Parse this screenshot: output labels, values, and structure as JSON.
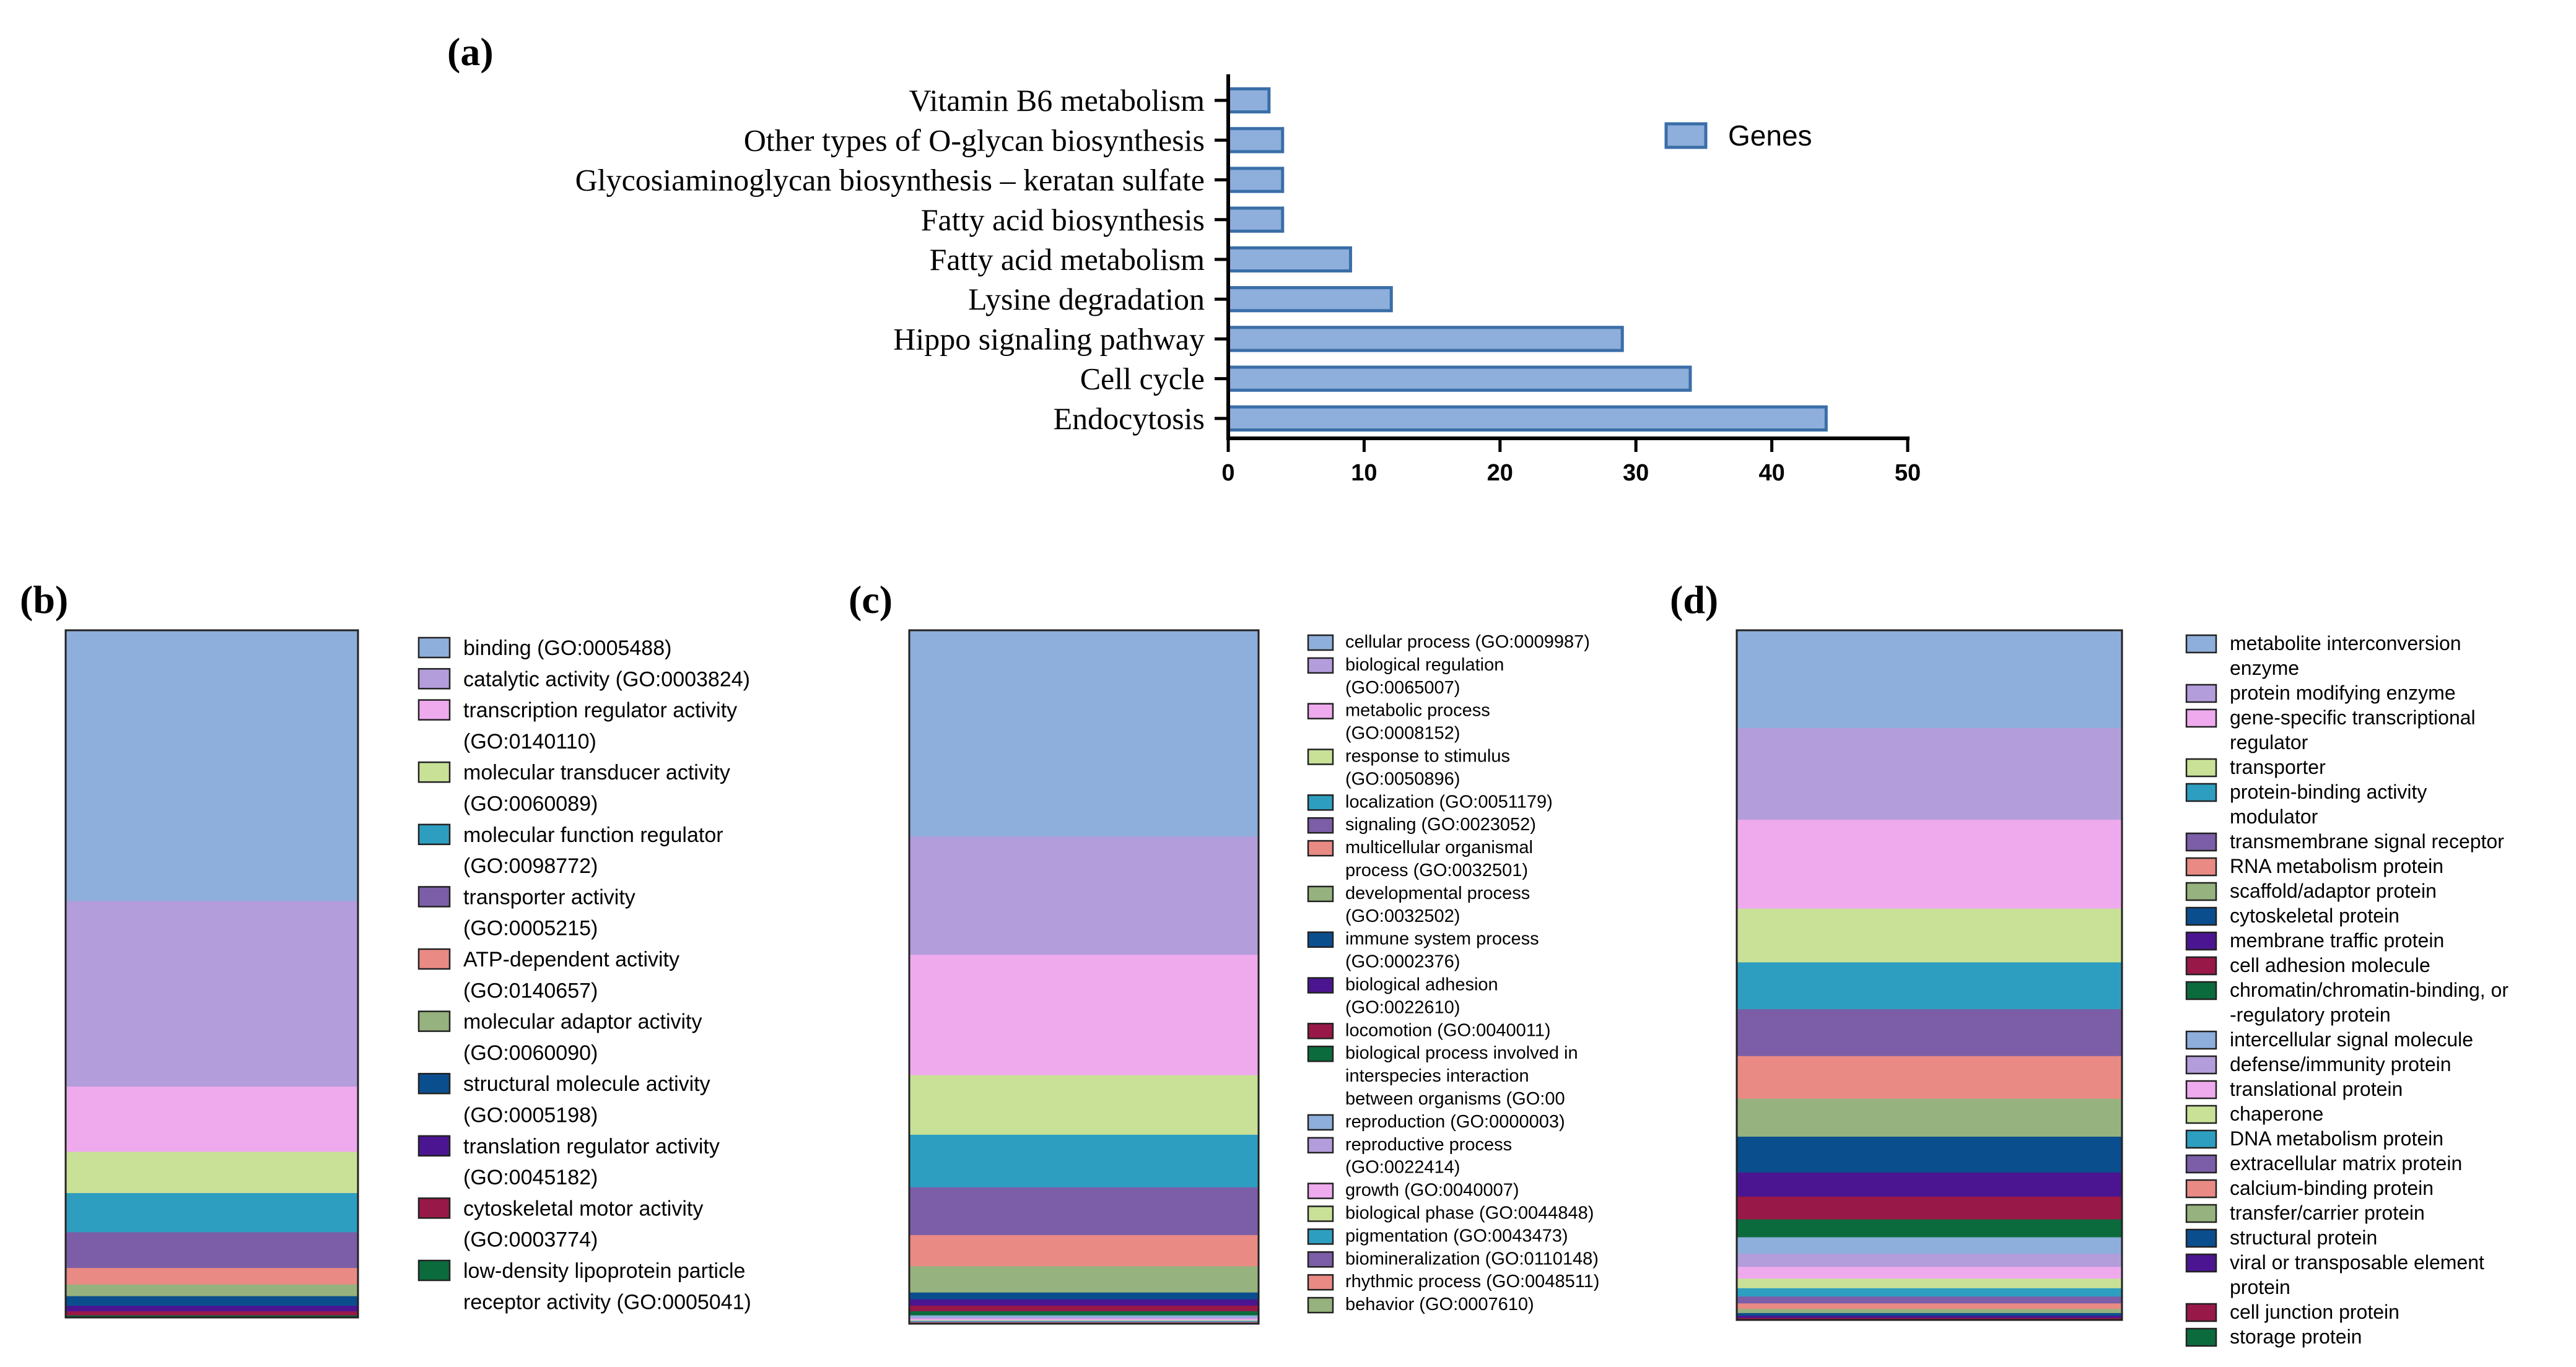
{
  "chart_data": [
    {
      "panel": "(a)",
      "type": "bar",
      "orientation": "horizontal",
      "categories": [
        "Vitamin B6 metabolism",
        "Other types of O-glycan biosynthesis",
        "Glycosiaminoglycan biosynthesis – keratan sulfate",
        "Fatty acid biosynthesis",
        "Fatty acid metabolism",
        "Lysine degradation",
        "Hippo signaling pathway",
        "Cell cycle",
        "Endocytosis"
      ],
      "series": [
        {
          "name": "Genes",
          "values": [
            3,
            4,
            4,
            4,
            9,
            12,
            29,
            34,
            44
          ]
        }
      ],
      "xlim": [
        0,
        50
      ],
      "xticks": [
        "0",
        "10",
        "20",
        "30",
        "40",
        "50"
      ],
      "legend": "top-right",
      "color": "#8eaedb",
      "edge_color": "#3a6ea8"
    },
    {
      "panel": "(b)",
      "type": "bar",
      "stacked": true,
      "series": [
        {
          "name": "binding (GO:0005488)",
          "value": 39.4,
          "color": "#8eaedb"
        },
        {
          "name": "catalytic activity (GO:0003824)",
          "value": 27.0,
          "color": "#b39ddb"
        },
        {
          "name": "transcription regulator activity (GO:0140110)",
          "value": 9.5,
          "color": "#efaaee"
        },
        {
          "name": "molecular transducer activity (GO:0060089)",
          "value": 6.0,
          "color": "#c8e197"
        },
        {
          "name": "molecular function regulator (GO:0098772)",
          "value": 5.7,
          "color": "#2e9ec0"
        },
        {
          "name": "transporter activity (GO:0005215)",
          "value": 5.2,
          "color": "#7b5ea7"
        },
        {
          "name": "ATP-dependent activity (GO:0140657)",
          "value": 2.4,
          "color": "#e98a84"
        },
        {
          "name": "molecular adaptor activity (GO:0060090)",
          "value": 1.7,
          "color": "#96b27e"
        },
        {
          "name": "structural molecule activity (GO:0005198)",
          "value": 1.4,
          "color": "#0b4e8e"
        },
        {
          "name": "translation regulator activity (GO:0045182)",
          "value": 0.8,
          "color": "#4b1591"
        },
        {
          "name": "cytoskeletal motor activity (GO:0003774)",
          "value": 0.6,
          "color": "#981848"
        },
        {
          "name": "low-density lipoprotein particle receptor activity (GO:0005041)",
          "value": 0.3,
          "color": "#0c6b3c"
        }
      ],
      "legend_lines": [
        [
          "binding (GO:0005488)"
        ],
        [
          "catalytic activity (GO:0003824)"
        ],
        [
          "transcription regulator activity",
          "(GO:0140110)"
        ],
        [
          "molecular transducer activity",
          "(GO:0060089)"
        ],
        [
          "molecular function regulator",
          "(GO:0098772)"
        ],
        [
          "transporter activity",
          "(GO:0005215)"
        ],
        [
          "ATP-dependent activity",
          "(GO:0140657)"
        ],
        [
          "molecular adaptor activity",
          "(GO:0060090)"
        ],
        [
          "structural molecule activity",
          "(GO:0005198)"
        ],
        [
          "translation regulator activity",
          "(GO:0045182)"
        ],
        [
          "cytoskeletal motor activity",
          "(GO:0003774)"
        ],
        [
          "low-density lipoprotein particle",
          "receptor activity (GO:0005041)"
        ]
      ],
      "legend": "right"
    },
    {
      "panel": "(c)",
      "type": "bar",
      "stacked": true,
      "series": [
        {
          "name": "cellular process (GO:0009987)",
          "value": 29.8,
          "color": "#8eaedb"
        },
        {
          "name": "biological regulation (GO:0065007)",
          "value": 17.1,
          "color": "#b39ddb"
        },
        {
          "name": "metabolic process (GO:0008152)",
          "value": 17.4,
          "color": "#efaaee"
        },
        {
          "name": "response to stimulus (GO:0050896)",
          "value": 8.6,
          "color": "#c8e197"
        },
        {
          "name": "localization (GO:0051179)",
          "value": 7.6,
          "color": "#2e9ec0"
        },
        {
          "name": "signaling (GO:0023052)",
          "value": 6.9,
          "color": "#7b5ea7"
        },
        {
          "name": "multicellular organismal process (GO:0032501)",
          "value": 4.5,
          "color": "#e98a84"
        },
        {
          "name": "developmental process (GO:0032502)",
          "value": 3.8,
          "color": "#96b27e"
        },
        {
          "name": "immune system process (GO:0002376)",
          "value": 1.0,
          "color": "#0b4e8e"
        },
        {
          "name": "biological adhesion (GO:0022610)",
          "value": 0.9,
          "color": "#4b1591"
        },
        {
          "name": "locomotion (GO:0040011)",
          "value": 0.8,
          "color": "#981848"
        },
        {
          "name": "biological process involved in interspecies interaction between organisms (GO:00",
          "value": 0.6,
          "color": "#0c6b3c"
        },
        {
          "name": "reproduction (GO:0000003)",
          "value": 0.3,
          "color": "#8eaedb"
        },
        {
          "name": "reproductive process (GO:0022414)",
          "value": 0.2,
          "color": "#b39ddb"
        },
        {
          "name": "growth (GO:0040007)",
          "value": 0.2,
          "color": "#efaaee"
        },
        {
          "name": "biological phase (GO:0044848)",
          "value": 0.1,
          "color": "#c8e197"
        },
        {
          "name": "pigmentation (GO:0043473)",
          "value": 0.1,
          "color": "#2e9ec0"
        },
        {
          "name": "biomineralization (GO:0110148)",
          "value": 0.1,
          "color": "#7b5ea7"
        },
        {
          "name": "rhythmic process (GO:0048511)",
          "value": 0.1,
          "color": "#e98a84"
        },
        {
          "name": "behavior (GO:0007610)",
          "value": 0.1,
          "color": "#96b27e"
        }
      ],
      "legend_lines": [
        [
          "cellular process (GO:0009987)"
        ],
        [
          "biological regulation",
          "(GO:0065007)"
        ],
        [
          "metabolic process",
          "(GO:0008152)"
        ],
        [
          "response to stimulus",
          "(GO:0050896)"
        ],
        [
          "localization (GO:0051179)"
        ],
        [
          "signaling (GO:0023052)"
        ],
        [
          "multicellular organismal",
          "process (GO:0032501)"
        ],
        [
          "developmental process",
          "(GO:0032502)"
        ],
        [
          "immune system process",
          "(GO:0002376)"
        ],
        [
          "biological adhesion",
          "(GO:0022610)"
        ],
        [
          "locomotion (GO:0040011)"
        ],
        [
          "biological process involved in",
          "interspecies interaction",
          "between organisms (GO:00"
        ],
        [
          "reproduction (GO:0000003)"
        ],
        [
          "reproductive process",
          "(GO:0022414)"
        ],
        [
          "growth (GO:0040007)"
        ],
        [
          "biological phase (GO:0044848)"
        ],
        [
          "pigmentation (GO:0043473)"
        ],
        [
          "biomineralization (GO:0110148)"
        ],
        [
          "rhythmic process (GO:0048511)"
        ],
        [
          "behavior (GO:0007610)"
        ]
      ],
      "legend": "right"
    },
    {
      "panel": "(d)",
      "type": "bar",
      "stacked": true,
      "series": [
        {
          "name": "metabolite interconversion enzyme",
          "value": 14.2,
          "color": "#8eaedb"
        },
        {
          "name": "protein modifying enzyme",
          "value": 13.3,
          "color": "#b39ddb"
        },
        {
          "name": "gene-specific transcriptional regulator",
          "value": 12.9,
          "color": "#efaaee"
        },
        {
          "name": "transporter",
          "value": 7.8,
          "color": "#c8e197"
        },
        {
          "name": "protein-binding activity modulator",
          "value": 6.8,
          "color": "#2e9ec0"
        },
        {
          "name": "transmembrane signal receptor",
          "value": 6.8,
          "color": "#7b5ea7"
        },
        {
          "name": "RNA metabolism protein",
          "value": 6.2,
          "color": "#e98a84"
        },
        {
          "name": "scaffold/adaptor protein",
          "value": 5.5,
          "color": "#96b27e"
        },
        {
          "name": "cytoskeletal protein",
          "value": 5.2,
          "color": "#0b4e8e"
        },
        {
          "name": "membrane traffic protein",
          "value": 3.5,
          "color": "#4b1591"
        },
        {
          "name": "cell adhesion molecule",
          "value": 3.3,
          "color": "#981848"
        },
        {
          "name": "chromatin/chromatin-binding, or -regulatory protein",
          "value": 2.6,
          "color": "#0c6b3c"
        },
        {
          "name": "intercellular signal molecule",
          "value": 2.4,
          "color": "#8eaedb"
        },
        {
          "name": "defense/immunity protein",
          "value": 1.9,
          "color": "#b39ddb"
        },
        {
          "name": "translational protein",
          "value": 1.7,
          "color": "#efaaee"
        },
        {
          "name": "chaperone",
          "value": 1.4,
          "color": "#c8e197"
        },
        {
          "name": "DNA metabolism protein",
          "value": 1.2,
          "color": "#2e9ec0"
        },
        {
          "name": "extracellular matrix protein",
          "value": 1.0,
          "color": "#7b5ea7"
        },
        {
          "name": "calcium-binding protein",
          "value": 0.8,
          "color": "#e98a84"
        },
        {
          "name": "transfer/carrier protein",
          "value": 0.6,
          "color": "#96b27e"
        },
        {
          "name": "structural protein",
          "value": 0.4,
          "color": "#0b4e8e"
        },
        {
          "name": "viral or transposable element protein",
          "value": 0.3,
          "color": "#4b1591"
        },
        {
          "name": "cell junction protein",
          "value": 0.2,
          "color": "#981848"
        },
        {
          "name": "storage protein",
          "value": 0.1,
          "color": "#0c6b3c"
        }
      ],
      "legend_lines": [
        [
          "metabolite interconversion",
          "enzyme"
        ],
        [
          "protein modifying enzyme"
        ],
        [
          "gene-specific transcriptional",
          "regulator"
        ],
        [
          "transporter"
        ],
        [
          "protein-binding activity",
          "modulator"
        ],
        [
          "transmembrane signal receptor"
        ],
        [
          "RNA metabolism protein"
        ],
        [
          "scaffold/adaptor protein"
        ],
        [
          "cytoskeletal protein"
        ],
        [
          "membrane traffic protein"
        ],
        [
          "cell adhesion molecule"
        ],
        [
          "chromatin/chromatin-binding, or",
          "-regulatory protein"
        ],
        [
          "intercellular signal molecule"
        ],
        [
          "defense/immunity protein"
        ],
        [
          "translational protein"
        ],
        [
          "chaperone"
        ],
        [
          "DNA metabolism protein"
        ],
        [
          "extracellular matrix protein"
        ],
        [
          "calcium-binding protein"
        ],
        [
          "transfer/carrier protein"
        ],
        [
          "structural protein"
        ],
        [
          "viral or transposable element",
          "protein"
        ],
        [
          "cell junction protein"
        ],
        [
          "storage protein"
        ]
      ],
      "legend": "right"
    }
  ]
}
